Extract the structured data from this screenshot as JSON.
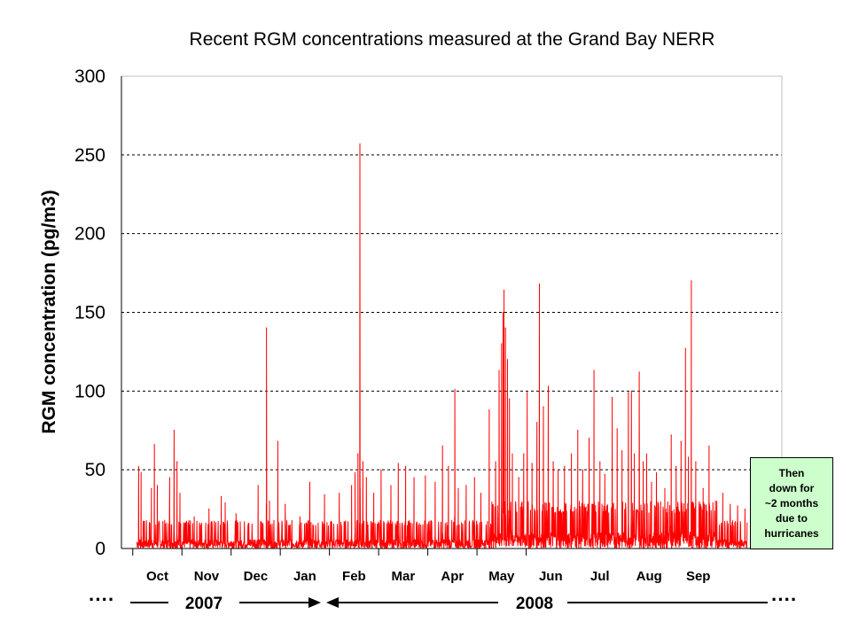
{
  "chart_data": {
    "type": "line",
    "title": "Recent RGM concentrations measured at the Grand Bay NERR",
    "ylabel": "RGM concentration (pg/m3)",
    "xlabel": "",
    "ylim": [
      0,
      300
    ],
    "yticks": [
      "0",
      "50",
      "100",
      "150",
      "200",
      "250",
      "300"
    ],
    "ytick_values": [
      0,
      50,
      100,
      150,
      200,
      250,
      300
    ],
    "months": [
      "Oct",
      "Nov",
      "Dec",
      "Jan",
      "Feb",
      "Mar",
      "Apr",
      "May",
      "Jun",
      "Jul",
      "Aug",
      "Sep"
    ],
    "x_unit": "months since Oct 1 2007",
    "years": [
      {
        "label": "2007"
      },
      {
        "label": "2008"
      }
    ],
    "grid": "horizontal-dashed",
    "series": [
      {
        "color": "#ff0000",
        "peaks": [
          {
            "x": 1.12,
            "y": 52
          },
          {
            "x": 1.17,
            "y": 48
          },
          {
            "x": 1.38,
            "y": 38
          },
          {
            "x": 1.44,
            "y": 66
          },
          {
            "x": 1.5,
            "y": 40
          },
          {
            "x": 1.75,
            "y": 45
          },
          {
            "x": 1.84,
            "y": 75
          },
          {
            "x": 1.9,
            "y": 55
          },
          {
            "x": 1.96,
            "y": 35
          },
          {
            "x": 2.25,
            "y": 20
          },
          {
            "x": 2.55,
            "y": 25
          },
          {
            "x": 2.8,
            "y": 33
          },
          {
            "x": 2.88,
            "y": 29
          },
          {
            "x": 3.1,
            "y": 22
          },
          {
            "x": 3.35,
            "y": 16
          },
          {
            "x": 3.55,
            "y": 40
          },
          {
            "x": 3.72,
            "y": 140
          },
          {
            "x": 3.78,
            "y": 30
          },
          {
            "x": 3.95,
            "y": 68
          },
          {
            "x": 4.1,
            "y": 28
          },
          {
            "x": 4.4,
            "y": 20
          },
          {
            "x": 4.6,
            "y": 42
          },
          {
            "x": 4.9,
            "y": 34
          },
          {
            "x": 5.2,
            "y": 35
          },
          {
            "x": 5.45,
            "y": 40
          },
          {
            "x": 5.52,
            "y": 48
          },
          {
            "x": 5.58,
            "y": 60
          },
          {
            "x": 5.62,
            "y": 257
          },
          {
            "x": 5.68,
            "y": 55
          },
          {
            "x": 5.75,
            "y": 45
          },
          {
            "x": 5.9,
            "y": 35
          },
          {
            "x": 6.05,
            "y": 50
          },
          {
            "x": 6.25,
            "y": 40
          },
          {
            "x": 6.4,
            "y": 54
          },
          {
            "x": 6.55,
            "y": 52
          },
          {
            "x": 6.72,
            "y": 45
          },
          {
            "x": 6.95,
            "y": 46
          },
          {
            "x": 7.15,
            "y": 42
          },
          {
            "x": 7.3,
            "y": 65
          },
          {
            "x": 7.42,
            "y": 52
          },
          {
            "x": 7.55,
            "y": 101
          },
          {
            "x": 7.62,
            "y": 38
          },
          {
            "x": 7.78,
            "y": 40
          },
          {
            "x": 7.95,
            "y": 45
          },
          {
            "x": 8.08,
            "y": 35
          },
          {
            "x": 8.25,
            "y": 88
          },
          {
            "x": 8.38,
            "y": 55
          },
          {
            "x": 8.45,
            "y": 113
          },
          {
            "x": 8.5,
            "y": 130
          },
          {
            "x": 8.53,
            "y": 150
          },
          {
            "x": 8.55,
            "y": 164
          },
          {
            "x": 8.58,
            "y": 140
          },
          {
            "x": 8.62,
            "y": 120
          },
          {
            "x": 8.66,
            "y": 95
          },
          {
            "x": 8.72,
            "y": 60
          },
          {
            "x": 8.85,
            "y": 45
          },
          {
            "x": 8.95,
            "y": 60
          },
          {
            "x": 9.02,
            "y": 99
          },
          {
            "x": 9.12,
            "y": 54
          },
          {
            "x": 9.22,
            "y": 80
          },
          {
            "x": 9.27,
            "y": 168
          },
          {
            "x": 9.35,
            "y": 90
          },
          {
            "x": 9.45,
            "y": 103
          },
          {
            "x": 9.55,
            "y": 55
          },
          {
            "x": 9.65,
            "y": 50
          },
          {
            "x": 9.78,
            "y": 52
          },
          {
            "x": 9.92,
            "y": 60
          },
          {
            "x": 10.05,
            "y": 75
          },
          {
            "x": 10.15,
            "y": 50
          },
          {
            "x": 10.28,
            "y": 70
          },
          {
            "x": 10.38,
            "y": 113
          },
          {
            "x": 10.5,
            "y": 55
          },
          {
            "x": 10.6,
            "y": 47
          },
          {
            "x": 10.75,
            "y": 96
          },
          {
            "x": 10.85,
            "y": 76
          },
          {
            "x": 10.95,
            "y": 62
          },
          {
            "x": 11.08,
            "y": 99
          },
          {
            "x": 11.14,
            "y": 100
          },
          {
            "x": 11.2,
            "y": 60
          },
          {
            "x": 11.3,
            "y": 112
          },
          {
            "x": 11.38,
            "y": 55
          },
          {
            "x": 11.45,
            "y": 60
          },
          {
            "x": 11.55,
            "y": 42
          },
          {
            "x": 11.65,
            "y": 48
          },
          {
            "x": 11.82,
            "y": 38
          },
          {
            "x": 11.95,
            "y": 72
          },
          {
            "x": 12.05,
            "y": 52
          },
          {
            "x": 12.15,
            "y": 68
          },
          {
            "x": 12.24,
            "y": 127
          },
          {
            "x": 12.3,
            "y": 58
          },
          {
            "x": 12.36,
            "y": 170
          },
          {
            "x": 12.45,
            "y": 55
          },
          {
            "x": 12.6,
            "y": 38
          },
          {
            "x": 12.72,
            "y": 65
          },
          {
            "x": 12.85,
            "y": 30
          },
          {
            "x": 13.0,
            "y": 35
          },
          {
            "x": 13.15,
            "y": 28
          },
          {
            "x": 13.3,
            "y": 27
          },
          {
            "x": 13.45,
            "y": 25
          }
        ]
      }
    ]
  },
  "annotation": {
    "lines": [
      "Then",
      "down for",
      "~2 months",
      "due to",
      "hurricanes"
    ],
    "background": "#ccffcc"
  },
  "timeline": {
    "left_dots": "····",
    "right_dots": "····"
  }
}
